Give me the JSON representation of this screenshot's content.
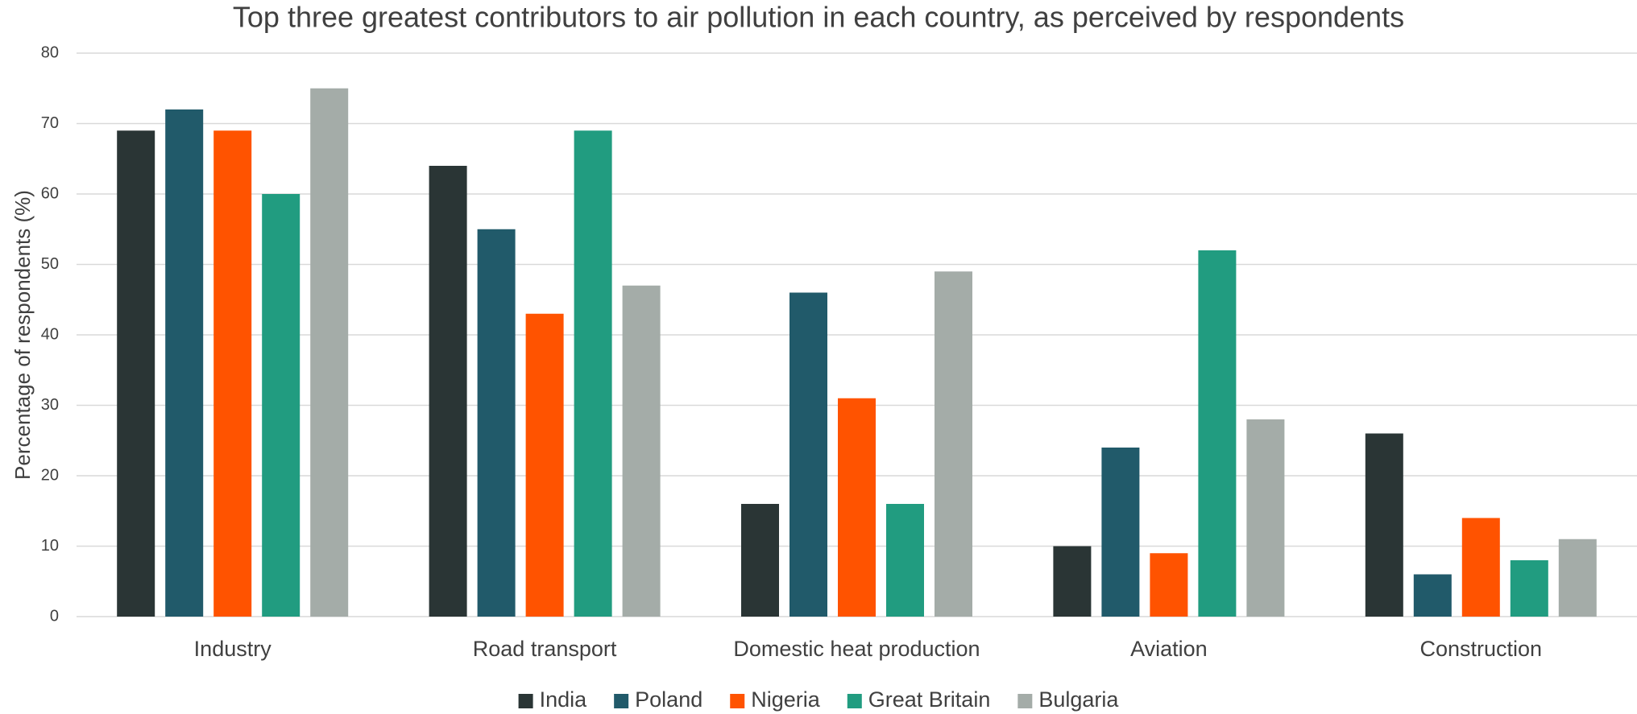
{
  "chart_data": {
    "type": "bar",
    "title": "Top three greatest contributors to air pollution in each country, as perceived by respondents",
    "y_label": "Percentage of respondents (%)",
    "categories": [
      "Industry",
      "Road transport",
      "Domestic heat production",
      "Aviation",
      "Construction"
    ],
    "series": [
      {
        "name": "India",
        "color": "#2a3535",
        "values": [
          69,
          64,
          16,
          10,
          26
        ]
      },
      {
        "name": "Poland",
        "color": "#215a6a",
        "values": [
          72,
          55,
          46,
          24,
          6
        ]
      },
      {
        "name": "Nigeria",
        "color": "#ff5300",
        "values": [
          69,
          43,
          31,
          9,
          14
        ]
      },
      {
        "name": "Great Britain",
        "color": "#219c80",
        "values": [
          60,
          69,
          16,
          52,
          8
        ]
      },
      {
        "name": "Bulgaria",
        "color": "#a4aca8",
        "values": [
          75,
          47,
          49,
          28,
          11
        ]
      }
    ],
    "ylim": [
      0,
      80
    ],
    "yticks": [
      0,
      10,
      20,
      30,
      40,
      50,
      60,
      70,
      80
    ],
    "grid": true,
    "legend": "bottom"
  }
}
